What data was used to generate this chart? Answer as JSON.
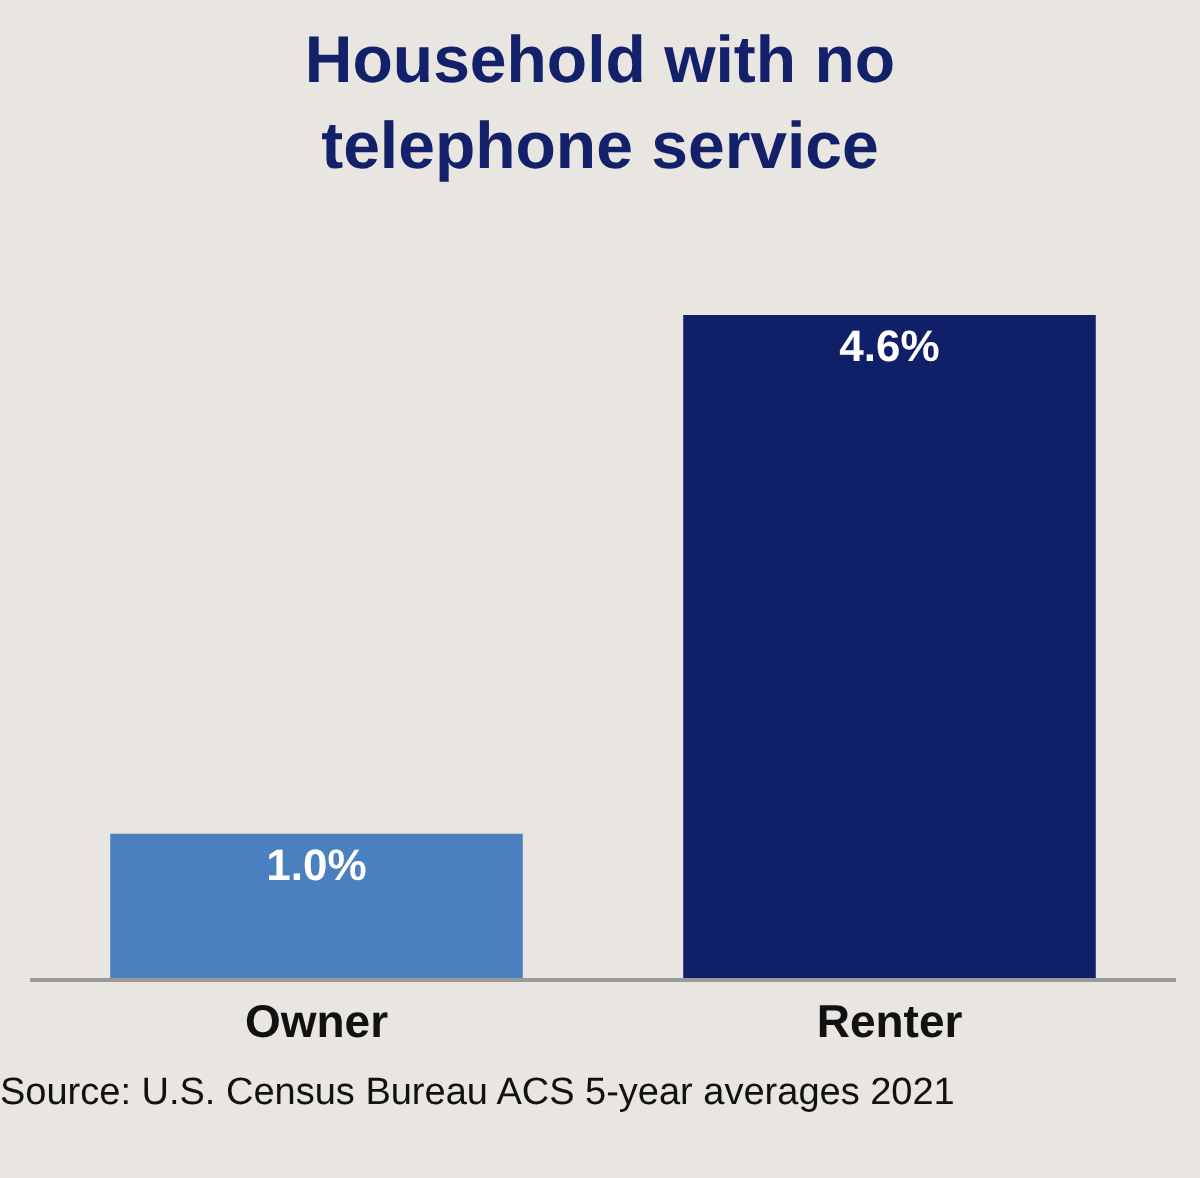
{
  "chart_data": {
    "type": "bar",
    "title": "Household with no\ntelephone service",
    "categories": [
      "Owner",
      "Renter"
    ],
    "values": [
      1.0,
      4.6
    ],
    "value_labels": [
      "1.0%",
      "4.6%"
    ],
    "colors": [
      "#4a7fc0",
      "#0f2069"
    ],
    "tick_labels": "x",
    "annotations": [
      "Source: U.S. Census Bureau ACS 5-year averages 2021"
    ]
  }
}
